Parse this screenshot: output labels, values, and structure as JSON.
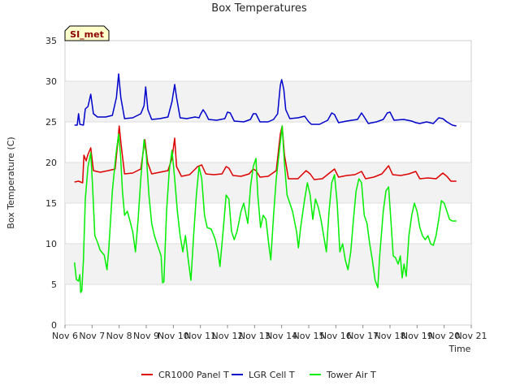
{
  "chart_data": {
    "type": "line",
    "title": "Box Temperatures",
    "xlabel": "Time",
    "ylabel": "Box Temperature (C)",
    "site_tag": "SI_met",
    "xlim": [
      0,
      15
    ],
    "ylim": [
      0,
      35
    ],
    "x_ticks": [
      {
        "value": 0,
        "label": "Nov 6"
      },
      {
        "value": 1,
        "label": "Nov 7"
      },
      {
        "value": 2,
        "label": "Nov 8"
      },
      {
        "value": 3,
        "label": "Nov 9"
      },
      {
        "value": 4,
        "label": "Nov 10"
      },
      {
        "value": 5,
        "label": "Nov 11"
      },
      {
        "value": 6,
        "label": "Nov 12"
      },
      {
        "value": 7,
        "label": "Nov 13"
      },
      {
        "value": 8,
        "label": "Nov 14"
      },
      {
        "value": 9,
        "label": "Nov 15"
      },
      {
        "value": 10,
        "label": "Nov 16"
      },
      {
        "value": 11,
        "label": "Nov 17"
      },
      {
        "value": 12,
        "label": "Nov 18"
      },
      {
        "value": 13,
        "label": "Nov 19"
      },
      {
        "value": 14,
        "label": "Nov 20"
      },
      {
        "value": 15,
        "label": "Nov 21"
      }
    ],
    "y_ticks": [
      0,
      5,
      10,
      15,
      20,
      25,
      30,
      35
    ],
    "bands": [
      [
        5,
        10
      ],
      [
        15,
        20
      ],
      [
        25,
        30
      ]
    ],
    "legend_position": "bottom-center",
    "series": [
      {
        "name": "CR1000 Panel T",
        "color": "#dd0000",
        "points": [
          [
            0.35,
            17.6
          ],
          [
            0.5,
            17.7
          ],
          [
            0.65,
            17.5
          ],
          [
            0.7,
            20.9
          ],
          [
            0.78,
            20.2
          ],
          [
            0.85,
            21.0
          ],
          [
            0.95,
            21.8
          ],
          [
            1.05,
            19.0
          ],
          [
            1.3,
            18.8
          ],
          [
            1.6,
            19.0
          ],
          [
            1.85,
            19.2
          ],
          [
            1.95,
            22.5
          ],
          [
            2.0,
            24.5
          ],
          [
            2.08,
            22.0
          ],
          [
            2.2,
            18.6
          ],
          [
            2.5,
            18.7
          ],
          [
            2.8,
            19.2
          ],
          [
            2.95,
            22.8
          ],
          [
            3.05,
            20.0
          ],
          [
            3.2,
            18.6
          ],
          [
            3.5,
            18.8
          ],
          [
            3.8,
            19.0
          ],
          [
            3.95,
            20.5
          ],
          [
            4.05,
            23.0
          ],
          [
            4.12,
            19.5
          ],
          [
            4.3,
            18.3
          ],
          [
            4.6,
            18.5
          ],
          [
            4.9,
            19.5
          ],
          [
            5.05,
            19.7
          ],
          [
            5.2,
            18.6
          ],
          [
            5.5,
            18.5
          ],
          [
            5.8,
            18.6
          ],
          [
            5.95,
            19.5
          ],
          [
            6.05,
            19.3
          ],
          [
            6.2,
            18.4
          ],
          [
            6.5,
            18.3
          ],
          [
            6.8,
            18.6
          ],
          [
            6.95,
            19.2
          ],
          [
            7.05,
            19.0
          ],
          [
            7.2,
            18.2
          ],
          [
            7.5,
            18.3
          ],
          [
            7.8,
            19.0
          ],
          [
            7.95,
            23.5
          ],
          [
            8.02,
            24.5
          ],
          [
            8.1,
            21.0
          ],
          [
            8.25,
            18.0
          ],
          [
            8.6,
            18.0
          ],
          [
            8.9,
            19.0
          ],
          [
            9.05,
            18.6
          ],
          [
            9.2,
            17.9
          ],
          [
            9.5,
            18.0
          ],
          [
            9.8,
            18.8
          ],
          [
            9.95,
            19.2
          ],
          [
            10.1,
            18.2
          ],
          [
            10.4,
            18.4
          ],
          [
            10.7,
            18.5
          ],
          [
            10.95,
            18.9
          ],
          [
            11.1,
            18.0
          ],
          [
            11.4,
            18.2
          ],
          [
            11.7,
            18.6
          ],
          [
            11.95,
            19.6
          ],
          [
            12.1,
            18.5
          ],
          [
            12.4,
            18.4
          ],
          [
            12.7,
            18.6
          ],
          [
            12.95,
            18.9
          ],
          [
            13.1,
            18.0
          ],
          [
            13.4,
            18.1
          ],
          [
            13.7,
            18.0
          ],
          [
            13.95,
            18.7
          ],
          [
            14.1,
            18.3
          ],
          [
            14.25,
            17.7
          ],
          [
            14.45,
            17.7
          ]
        ]
      },
      {
        "name": "LGR Cell T",
        "color": "#0000cc",
        "points": [
          [
            0.35,
            24.6
          ],
          [
            0.45,
            24.6
          ],
          [
            0.5,
            26.0
          ],
          [
            0.55,
            24.7
          ],
          [
            0.68,
            24.6
          ],
          [
            0.75,
            26.6
          ],
          [
            0.85,
            26.9
          ],
          [
            0.95,
            28.4
          ],
          [
            1.05,
            26.0
          ],
          [
            1.2,
            25.6
          ],
          [
            1.5,
            25.6
          ],
          [
            1.75,
            25.8
          ],
          [
            1.9,
            28.0
          ],
          [
            1.98,
            30.9
          ],
          [
            2.06,
            28.0
          ],
          [
            2.2,
            25.4
          ],
          [
            2.5,
            25.5
          ],
          [
            2.8,
            26.0
          ],
          [
            2.92,
            27.0
          ],
          [
            2.98,
            29.3
          ],
          [
            3.06,
            26.5
          ],
          [
            3.2,
            25.3
          ],
          [
            3.5,
            25.4
          ],
          [
            3.8,
            25.6
          ],
          [
            3.95,
            27.5
          ],
          [
            4.05,
            29.6
          ],
          [
            4.12,
            28.0
          ],
          [
            4.25,
            25.5
          ],
          [
            4.5,
            25.4
          ],
          [
            4.8,
            25.6
          ],
          [
            4.95,
            25.5
          ],
          [
            5.0,
            25.9
          ],
          [
            5.1,
            26.5
          ],
          [
            5.2,
            26.0
          ],
          [
            5.3,
            25.3
          ],
          [
            5.6,
            25.2
          ],
          [
            5.9,
            25.4
          ],
          [
            6.0,
            26.2
          ],
          [
            6.1,
            26.1
          ],
          [
            6.25,
            25.1
          ],
          [
            6.6,
            25.0
          ],
          [
            6.85,
            25.3
          ],
          [
            6.95,
            26.0
          ],
          [
            7.05,
            26.0
          ],
          [
            7.2,
            25.0
          ],
          [
            7.5,
            25.0
          ],
          [
            7.7,
            25.3
          ],
          [
            7.85,
            26.0
          ],
          [
            7.95,
            29.5
          ],
          [
            8.0,
            30.2
          ],
          [
            8.08,
            29.0
          ],
          [
            8.15,
            26.5
          ],
          [
            8.3,
            25.4
          ],
          [
            8.6,
            25.5
          ],
          [
            8.85,
            25.7
          ],
          [
            9.0,
            25.0
          ],
          [
            9.1,
            24.7
          ],
          [
            9.4,
            24.7
          ],
          [
            9.7,
            25.2
          ],
          [
            9.85,
            26.1
          ],
          [
            9.95,
            25.9
          ],
          [
            10.1,
            24.9
          ],
          [
            10.4,
            25.1
          ],
          [
            10.6,
            25.2
          ],
          [
            10.8,
            25.3
          ],
          [
            10.95,
            26.1
          ],
          [
            11.05,
            25.6
          ],
          [
            11.2,
            24.8
          ],
          [
            11.5,
            25.0
          ],
          [
            11.75,
            25.3
          ],
          [
            11.9,
            26.1
          ],
          [
            12.0,
            26.2
          ],
          [
            12.15,
            25.2
          ],
          [
            12.5,
            25.3
          ],
          [
            12.8,
            25.1
          ],
          [
            12.95,
            24.9
          ],
          [
            13.1,
            24.8
          ],
          [
            13.35,
            25.0
          ],
          [
            13.6,
            24.8
          ],
          [
            13.8,
            25.5
          ],
          [
            13.95,
            25.4
          ],
          [
            14.1,
            25.0
          ],
          [
            14.3,
            24.6
          ],
          [
            14.45,
            24.5
          ]
        ]
      },
      {
        "name": "Tower Air T",
        "color": "#00ee00",
        "points": [
          [
            0.35,
            7.7
          ],
          [
            0.42,
            5.6
          ],
          [
            0.5,
            5.4
          ],
          [
            0.55,
            6.2
          ],
          [
            0.58,
            4.0
          ],
          [
            0.62,
            4.2
          ],
          [
            0.68,
            8.0
          ],
          [
            0.75,
            15.5
          ],
          [
            0.85,
            19.5
          ],
          [
            0.95,
            21.2
          ],
          [
            1.02,
            17.0
          ],
          [
            1.1,
            11.0
          ],
          [
            1.2,
            10.2
          ],
          [
            1.3,
            9.2
          ],
          [
            1.45,
            8.6
          ],
          [
            1.55,
            6.8
          ],
          [
            1.62,
            9.5
          ],
          [
            1.75,
            16.5
          ],
          [
            1.88,
            21.0
          ],
          [
            1.98,
            23.5
          ],
          [
            2.05,
            21.0
          ],
          [
            2.12,
            16.5
          ],
          [
            2.2,
            13.5
          ],
          [
            2.3,
            14.0
          ],
          [
            2.4,
            12.8
          ],
          [
            2.5,
            11.5
          ],
          [
            2.6,
            9.0
          ],
          [
            2.7,
            13.0
          ],
          [
            2.8,
            18.0
          ],
          [
            2.92,
            22.8
          ],
          [
            3.0,
            21.0
          ],
          [
            3.1,
            16.0
          ],
          [
            3.2,
            12.5
          ],
          [
            3.3,
            11.0
          ],
          [
            3.4,
            10.0
          ],
          [
            3.55,
            8.5
          ],
          [
            3.6,
            5.2
          ],
          [
            3.65,
            5.3
          ],
          [
            3.75,
            14.0
          ],
          [
            3.85,
            19.0
          ],
          [
            3.95,
            21.5
          ],
          [
            4.05,
            18.0
          ],
          [
            4.15,
            14.0
          ],
          [
            4.25,
            11.0
          ],
          [
            4.35,
            9.0
          ],
          [
            4.45,
            11.0
          ],
          [
            4.55,
            8.0
          ],
          [
            4.65,
            5.5
          ],
          [
            4.75,
            11.0
          ],
          [
            4.85,
            16.0
          ],
          [
            4.95,
            19.5
          ],
          [
            5.05,
            18.0
          ],
          [
            5.15,
            13.5
          ],
          [
            5.25,
            12.0
          ],
          [
            5.4,
            11.8
          ],
          [
            5.55,
            10.5
          ],
          [
            5.65,
            9.0
          ],
          [
            5.72,
            7.2
          ],
          [
            5.85,
            12.0
          ],
          [
            5.95,
            16.0
          ],
          [
            6.05,
            15.5
          ],
          [
            6.15,
            11.5
          ],
          [
            6.25,
            10.5
          ],
          [
            6.35,
            11.5
          ],
          [
            6.5,
            14.0
          ],
          [
            6.6,
            15.0
          ],
          [
            6.75,
            12.5
          ],
          [
            6.85,
            17.0
          ],
          [
            6.95,
            19.5
          ],
          [
            7.05,
            20.5
          ],
          [
            7.12,
            16.0
          ],
          [
            7.22,
            12.0
          ],
          [
            7.32,
            13.5
          ],
          [
            7.42,
            13.0
          ],
          [
            7.52,
            10.0
          ],
          [
            7.6,
            8.0
          ],
          [
            7.7,
            13.5
          ],
          [
            7.8,
            18.0
          ],
          [
            7.95,
            22.5
          ],
          [
            8.02,
            24.5
          ],
          [
            8.1,
            20.0
          ],
          [
            8.2,
            16.0
          ],
          [
            8.3,
            15.0
          ],
          [
            8.4,
            14.0
          ],
          [
            8.55,
            11.5
          ],
          [
            8.62,
            9.5
          ],
          [
            8.7,
            12.0
          ],
          [
            8.85,
            15.5
          ],
          [
            8.95,
            17.5
          ],
          [
            9.05,
            16.0
          ],
          [
            9.15,
            13.0
          ],
          [
            9.25,
            15.5
          ],
          [
            9.35,
            14.5
          ],
          [
            9.45,
            13.0
          ],
          [
            9.55,
            11.0
          ],
          [
            9.65,
            9.0
          ],
          [
            9.75,
            14.0
          ],
          [
            9.85,
            17.5
          ],
          [
            9.95,
            18.5
          ],
          [
            10.05,
            15.0
          ],
          [
            10.15,
            9.0
          ],
          [
            10.25,
            10.0
          ],
          [
            10.35,
            8.0
          ],
          [
            10.45,
            6.8
          ],
          [
            10.55,
            9.0
          ],
          [
            10.65,
            13.0
          ],
          [
            10.75,
            16.5
          ],
          [
            10.85,
            18.0
          ],
          [
            10.95,
            17.5
          ],
          [
            11.05,
            13.5
          ],
          [
            11.15,
            12.5
          ],
          [
            11.25,
            10.0
          ],
          [
            11.35,
            8.0
          ],
          [
            11.45,
            5.5
          ],
          [
            11.55,
            4.6
          ],
          [
            11.62,
            8.5
          ],
          [
            11.75,
            14.0
          ],
          [
            11.85,
            16.5
          ],
          [
            11.95,
            17.0
          ],
          [
            12.05,
            12.0
          ],
          [
            12.12,
            8.5
          ],
          [
            12.2,
            8.3
          ],
          [
            12.3,
            7.5
          ],
          [
            12.38,
            8.5
          ],
          [
            12.45,
            5.8
          ],
          [
            12.52,
            7.5
          ],
          [
            12.6,
            6.0
          ],
          [
            12.7,
            11.0
          ],
          [
            12.8,
            13.5
          ],
          [
            12.9,
            15.0
          ],
          [
            13.0,
            14.0
          ],
          [
            13.1,
            12.0
          ],
          [
            13.2,
            11.0
          ],
          [
            13.3,
            10.5
          ],
          [
            13.4,
            11.0
          ],
          [
            13.5,
            10.0
          ],
          [
            13.6,
            9.8
          ],
          [
            13.7,
            11.0
          ],
          [
            13.8,
            13.0
          ],
          [
            13.9,
            15.3
          ],
          [
            14.0,
            15.0
          ],
          [
            14.1,
            14.0
          ],
          [
            14.2,
            13.0
          ],
          [
            14.3,
            12.8
          ],
          [
            14.45,
            12.8
          ]
        ]
      }
    ]
  }
}
